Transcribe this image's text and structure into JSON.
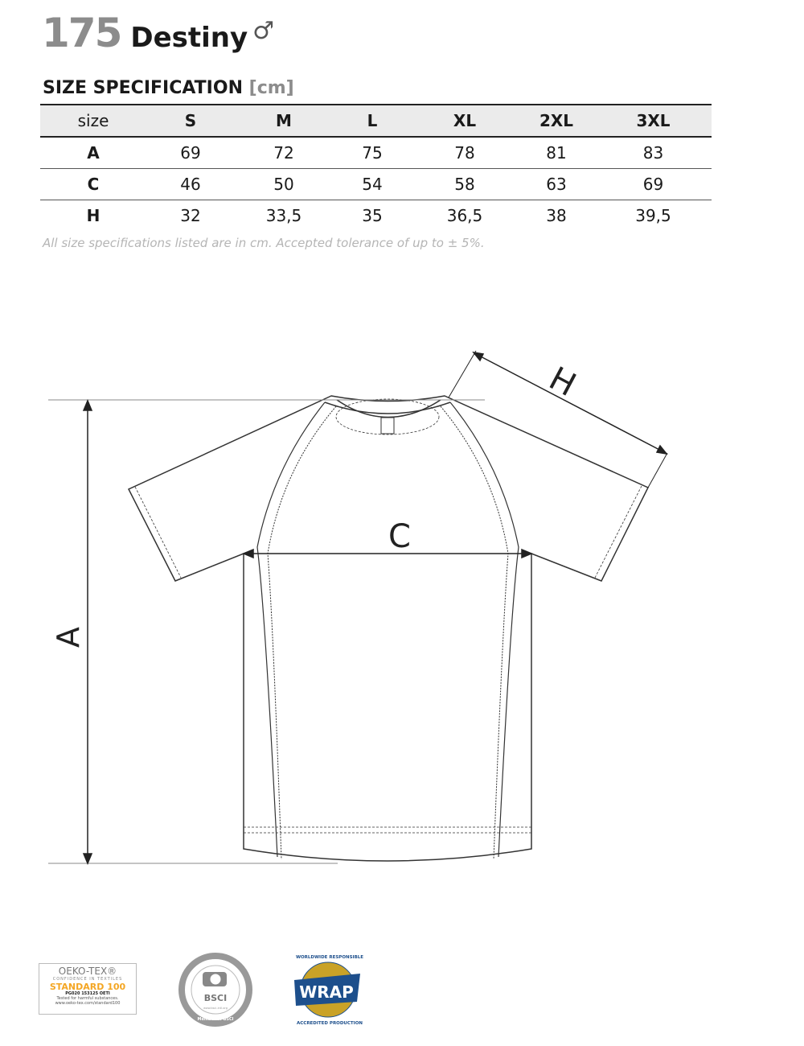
{
  "header": {
    "number": "175",
    "name": "Destiny",
    "gender_symbol": "♂"
  },
  "section": {
    "title": "SIZE SPECIFICATION",
    "unit": "[cm]"
  },
  "table": {
    "columns": [
      "size",
      "S",
      "M",
      "L",
      "XL",
      "2XL",
      "3XL"
    ],
    "rows": [
      {
        "label": "A",
        "values": [
          "69",
          "72",
          "75",
          "78",
          "81",
          "83"
        ]
      },
      {
        "label": "C",
        "values": [
          "46",
          "50",
          "54",
          "58",
          "63",
          "69"
        ]
      },
      {
        "label": "H",
        "values": [
          "32",
          "33,5",
          "35",
          "36,5",
          "38",
          "39,5"
        ]
      }
    ]
  },
  "note": "All size specifications listed are in cm. Accepted tolerance of up to ± 5%.",
  "diagram": {
    "label_a": "A",
    "label_c": "C",
    "label_h": "H"
  },
  "logos": {
    "oeko": {
      "line1": "OEKO-TEX®",
      "line2": "CONFIDENCE IN TEXTILES",
      "line3": "STANDARD 100",
      "line4": "PG020 153125 OETI",
      "line5": "Tested for harmful substances.",
      "line6": "www.oeko-tex.com/standard100"
    },
    "bsci": {
      "ring": "BUSINESS SOCIAL COMPLIANCE INITIATIVE",
      "center": "BSCI",
      "url": "www.bsci-intl.org",
      "member": "Member of BSCI"
    },
    "wrap": {
      "center": "WRAP",
      "top": "WORLDWIDE RESPONSIBLE",
      "bottom": "ACCREDITED PRODUCTION"
    }
  },
  "colors": {
    "number_gray": "#8c8c8c",
    "header_bg": "#ebebeb",
    "note_gray": "#b5b5b5",
    "oeko_orange": "#f4a623",
    "wrap_blue": "#1d4f8c",
    "wrap_gold": "#c9a227"
  }
}
